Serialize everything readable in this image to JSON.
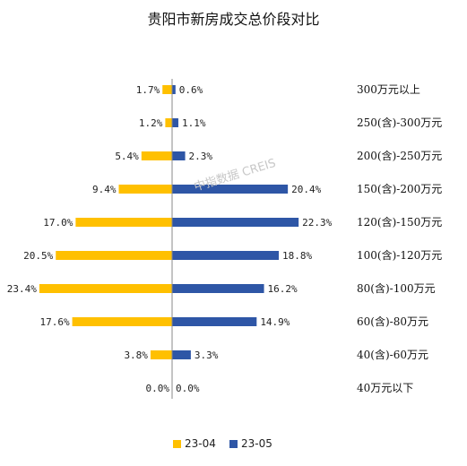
{
  "chart_data": {
    "type": "bar",
    "orientation": "horizontal-butterfly",
    "title": "贵阳市新房成交总价段对比",
    "categories": [
      "300万元以上",
      "250(含)-300万元",
      "200(含)-250万元",
      "150(含)-200万元",
      "120(含)-150万元",
      "100(含)-120万元",
      "80(含)-100万元",
      "60(含)-80万元",
      "40(含)-60万元",
      "40万元以下"
    ],
    "series": [
      {
        "name": "23-04",
        "color": "#FFC000",
        "side": "left",
        "values": [
          1.7,
          1.2,
          5.4,
          9.4,
          17.0,
          20.5,
          23.4,
          17.6,
          3.8,
          0.0
        ],
        "labels": [
          "1.7%",
          "1.2%",
          "5.4%",
          "9.4%",
          "17.0%",
          "20.5%",
          "23.4%",
          "17.6%",
          "3.8%",
          "0.0%"
        ]
      },
      {
        "name": "23-05",
        "color": "#2E56A6",
        "side": "right",
        "values": [
          0.6,
          1.1,
          2.3,
          20.4,
          22.3,
          18.8,
          16.2,
          14.9,
          3.3,
          0.0
        ],
        "labels": [
          "0.6%",
          "1.1%",
          "2.3%",
          "20.4%",
          "22.3%",
          "18.8%",
          "16.2%",
          "14.9%",
          "3.3%",
          "0.0%"
        ]
      }
    ],
    "legend_position": "bottom-left",
    "grid": false
  },
  "watermark": "中指数据 CREIS"
}
